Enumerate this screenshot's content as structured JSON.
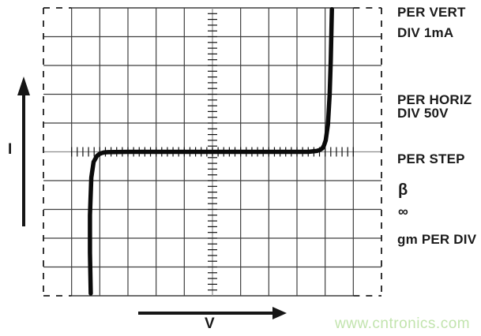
{
  "chart_data": {
    "type": "line",
    "description": "Curve tracer oscilloscope display of a device I-V characteristic with symmetric breakdown: flat zero-current line with sharp conduction at about -4.3 and +4.2 horizontal divisions",
    "xlabel": "V",
    "ylabel": "I",
    "x_scale_per_div": "50V",
    "y_scale_per_div": "1mA",
    "divisions": {
      "cols": 12,
      "rows": 10
    },
    "axis_range_div": {
      "x": [
        -6,
        6
      ],
      "y": [
        -5,
        5
      ]
    },
    "grid": true,
    "legend_position": "none",
    "series": [
      {
        "name": "device-iv-trace",
        "points_div": [
          [
            -4.32,
            -4.92
          ],
          [
            -4.35,
            -3.5
          ],
          [
            -4.35,
            -2.2
          ],
          [
            -4.3,
            -0.9
          ],
          [
            -4.22,
            -0.35
          ],
          [
            -4.1,
            -0.14
          ],
          [
            -4.02,
            -0.08
          ],
          [
            -3.95,
            -0.05
          ],
          [
            -3.85,
            -0.02
          ],
          [
            -3.7,
            -0.01
          ],
          [
            -3.0,
            0.0
          ],
          [
            0.0,
            0.0
          ],
          [
            3.4,
            0.0
          ],
          [
            3.7,
            0.03
          ],
          [
            3.8,
            0.06
          ],
          [
            3.9,
            0.12
          ],
          [
            3.96,
            0.22
          ],
          [
            4.02,
            0.4
          ],
          [
            4.1,
            0.95
          ],
          [
            4.16,
            2.0
          ],
          [
            4.2,
            3.2
          ],
          [
            4.24,
            4.95
          ]
        ]
      }
    ]
  },
  "readout": {
    "per_vert_line1": "PER VERT",
    "per_vert_line2": "DIV 1mA",
    "per_horiz_line1": "PER HORIZ",
    "per_horiz_line2": "DIV 50V",
    "per_step": "PER STEP",
    "beta_symbol": "β",
    "beta_value": "∞",
    "gm_label": "gm PER DIV"
  },
  "axes": {
    "y_label": "I",
    "x_label": "V"
  },
  "watermark": {
    "text": "www.cntronics.com",
    "color": "#c2e4ae"
  },
  "colors": {
    "trace": "#0b0b0b",
    "grid_line": "#3f3f3f",
    "center_line": "#8c8c8c",
    "tick": "#111111",
    "border_dash": "#1e1e1e",
    "arrow": "#161616",
    "text": "#1b1b1b"
  }
}
